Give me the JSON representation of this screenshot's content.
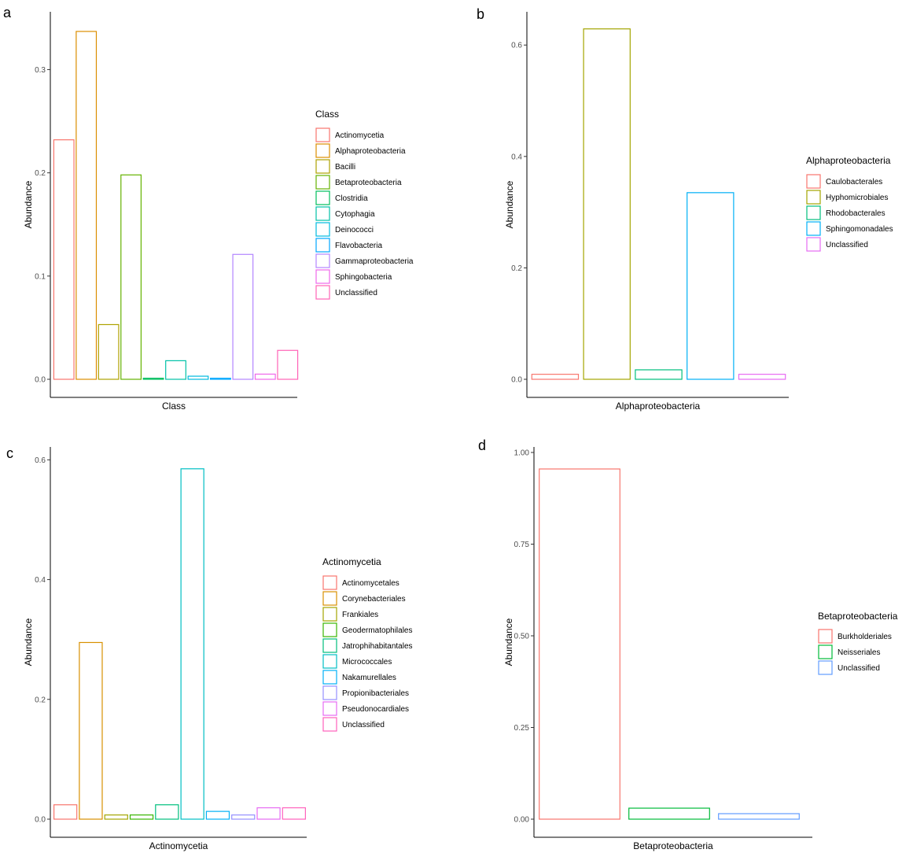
{
  "chart_data": [
    {
      "type": "bar",
      "panel": "a",
      "title": "",
      "xlabel": "Class",
      "ylabel": "Abundance",
      "ylim": [
        0,
        0.34
      ],
      "yticks": [
        0.0,
        0.1,
        0.2,
        0.3
      ],
      "ytick_labels": [
        "0.0",
        "0.1",
        "0.2",
        "0.3"
      ],
      "legend_title": "Class",
      "legend_position": "right",
      "categories": [
        "Actinomycetia",
        "Alphaproteobacteria",
        "Bacilli",
        "Betaproteobacteria",
        "Clostridia",
        "Cytophagia",
        "Deinococci",
        "Flavobacteria",
        "Gammaproteobacteria",
        "Sphingobacteria",
        "Unclassified"
      ],
      "values": [
        0.232,
        0.337,
        0.053,
        0.198,
        0.001,
        0.018,
        0.003,
        0.001,
        0.121,
        0.005,
        0.028
      ],
      "colors": [
        "#F8766D",
        "#DB8E00",
        "#AEA200",
        "#64B200",
        "#00BD5C",
        "#00C1A7",
        "#00BADE",
        "#00A6FF",
        "#B385FF",
        "#EF67EB",
        "#FF63B6"
      ]
    },
    {
      "type": "bar",
      "panel": "b",
      "title": "",
      "xlabel": "Alphaproteobacteria",
      "ylabel": "Abundance",
      "ylim": [
        0,
        0.63
      ],
      "yticks": [
        0.0,
        0.2,
        0.4,
        0.6
      ],
      "ytick_labels": [
        "0.0",
        "0.2",
        "0.4",
        "0.6"
      ],
      "legend_title": "Alphaproteobacteria",
      "legend_position": "right",
      "categories": [
        "Caulobacterales",
        "Hyphomicrobiales",
        "Rhodobacterales",
        "Sphingomonadales",
        "Unclassified"
      ],
      "values": [
        0.009,
        0.629,
        0.017,
        0.335,
        0.009
      ],
      "colors": [
        "#F8766D",
        "#A3A500",
        "#00BF7D",
        "#00B0F6",
        "#E76BF3"
      ]
    },
    {
      "type": "bar",
      "panel": "c",
      "title": "",
      "xlabel": "Actinomycetia",
      "ylabel": "Abundance",
      "ylim": [
        0,
        0.586
      ],
      "yticks": [
        0.0,
        0.2,
        0.4,
        0.6
      ],
      "ytick_labels": [
        "0.0",
        "0.2",
        "0.4",
        "0.6"
      ],
      "legend_title": "Actinomycetia",
      "legend_position": "right",
      "categories": [
        "Actinomycetales",
        "Corynebacteriales",
        "Frankiales",
        "Geodermatophilales",
        "Jatrophihabitantales",
        "Micrococcales",
        "Nakamurellales",
        "Propionibacteriales",
        "Pseudonocardiales",
        "Unclassified"
      ],
      "values": [
        0.024,
        0.295,
        0.007,
        0.007,
        0.024,
        0.585,
        0.013,
        0.007,
        0.019,
        0.019
      ],
      "colors": [
        "#F8766D",
        "#D89000",
        "#A3A500",
        "#39B600",
        "#00BF7D",
        "#00BFC4",
        "#00B0F6",
        "#9590FF",
        "#E76BF3",
        "#FF62BC"
      ]
    },
    {
      "type": "bar",
      "panel": "d",
      "title": "",
      "xlabel": "Betaproteobacteria",
      "ylabel": "Abundance",
      "ylim": [
        0,
        1.0
      ],
      "yticks": [
        0.0,
        0.25,
        0.5,
        0.75,
        1.0
      ],
      "ytick_labels": [
        "0.00",
        "0.25",
        "0.50",
        "0.75",
        "1.00"
      ],
      "legend_title": "Betaproteobacteria",
      "legend_position": "right",
      "categories": [
        "Burkholderiales",
        "Neisseriales",
        "Unclassified"
      ],
      "values": [
        0.955,
        0.03,
        0.015
      ],
      "colors": [
        "#F8766D",
        "#00BA38",
        "#619CFF"
      ]
    }
  ]
}
